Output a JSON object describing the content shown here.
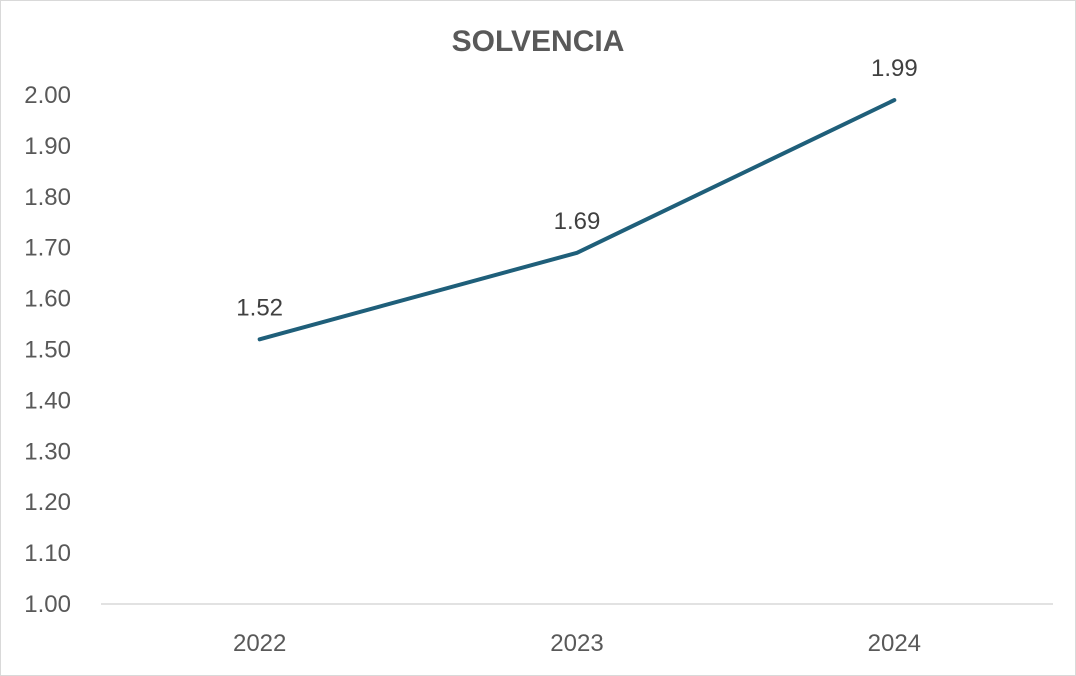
{
  "chart_data": {
    "type": "line",
    "title": "SOLVENCIA",
    "xlabel": "",
    "ylabel": "",
    "categories": [
      "2022",
      "2023",
      "2024"
    ],
    "series": [
      {
        "values": [
          1.52,
          1.69,
          1.99
        ],
        "labels": [
          "1.52",
          "1.69",
          "1.99"
        ]
      }
    ],
    "ylim": [
      1.0,
      2.0
    ],
    "yticks": [
      "1.00",
      "1.10",
      "1.20",
      "1.30",
      "1.40",
      "1.50",
      "1.60",
      "1.70",
      "1.80",
      "1.90",
      "2.00"
    ],
    "grid": false,
    "legend": "none",
    "line_color": "#1f5f7a"
  }
}
